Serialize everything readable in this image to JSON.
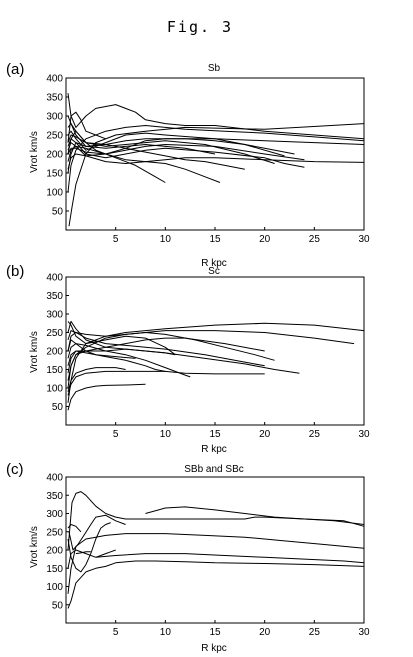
{
  "figure_title": "Fig. 3",
  "chart_data": [
    {
      "type": "line",
      "panel_label": "(a)",
      "title": "Sb",
      "xlabel": "R kpc",
      "ylabel": "Vrot km/s",
      "xlim": [
        0,
        30
      ],
      "ylim": [
        0,
        400
      ],
      "xticks": [
        5,
        10,
        15,
        20,
        25,
        30
      ],
      "yticks": [
        50,
        100,
        150,
        200,
        250,
        300,
        350,
        400
      ],
      "grid": false,
      "series": [
        {
          "x": [
            0.3,
            0.6,
            1,
            2,
            3,
            5,
            8,
            12,
            20,
            30
          ],
          "y": [
            10,
            60,
            120,
            200,
            230,
            250,
            260,
            270,
            265,
            280
          ]
        },
        {
          "x": [
            0.2,
            0.5,
            1,
            2,
            3,
            5,
            7,
            8,
            10,
            12,
            15,
            20,
            25,
            30
          ],
          "y": [
            360,
            300,
            270,
            300,
            320,
            330,
            310,
            290,
            280,
            275,
            275,
            260,
            250,
            240
          ]
        },
        {
          "x": [
            0.2,
            0.5,
            1,
            2,
            4,
            6,
            8,
            10,
            12,
            16,
            20,
            25,
            30
          ],
          "y": [
            100,
            170,
            210,
            240,
            260,
            270,
            275,
            270,
            265,
            260,
            255,
            245,
            235
          ]
        },
        {
          "x": [
            0.2,
            0.5,
            1,
            2,
            4,
            6,
            8,
            10,
            15,
            20,
            25,
            30
          ],
          "y": [
            150,
            200,
            230,
            220,
            225,
            235,
            240,
            240,
            240,
            235,
            230,
            225
          ]
        },
        {
          "x": [
            0.2,
            0.5,
            1,
            2,
            3,
            5,
            7,
            9,
            10
          ],
          "y": [
            200,
            240,
            260,
            230,
            210,
            190,
            170,
            140,
            125
          ]
        },
        {
          "x": [
            0.2,
            0.5,
            1,
            2,
            4,
            6,
            8,
            10,
            12,
            14,
            15.5
          ],
          "y": [
            180,
            210,
            220,
            215,
            200,
            185,
            180,
            175,
            160,
            140,
            125
          ]
        },
        {
          "x": [
            0.2,
            0.5,
            1,
            2,
            4,
            6,
            8,
            10,
            15,
            20,
            22,
            24
          ],
          "y": [
            220,
            240,
            230,
            200,
            190,
            200,
            210,
            215,
            205,
            190,
            175,
            165
          ]
        },
        {
          "x": [
            0.2,
            0.5,
            1,
            2,
            4,
            6,
            8,
            10,
            15,
            20,
            23
          ],
          "y": [
            250,
            260,
            240,
            210,
            230,
            250,
            255,
            250,
            240,
            215,
            200
          ]
        },
        {
          "x": [
            0.2,
            0.5,
            1,
            2,
            4,
            6,
            8,
            10,
            15,
            20,
            24
          ],
          "y": [
            160,
            190,
            200,
            195,
            200,
            210,
            220,
            225,
            220,
            200,
            185
          ]
        },
        {
          "x": [
            0.2,
            0.5,
            1,
            2,
            4,
            6,
            8,
            10,
            14,
            18,
            21
          ],
          "y": [
            270,
            280,
            260,
            230,
            220,
            225,
            230,
            235,
            225,
            200,
            175
          ]
        },
        {
          "x": [
            0.2,
            0.5,
            1,
            2,
            4,
            6,
            8,
            10,
            12,
            15,
            20,
            25,
            30
          ],
          "y": [
            210,
            230,
            220,
            195,
            180,
            175,
            180,
            185,
            190,
            190,
            185,
            180,
            178
          ]
        },
        {
          "x": [
            0.2,
            0.5,
            1,
            2,
            4,
            6,
            8,
            10,
            12,
            15
          ],
          "y": [
            300,
            280,
            250,
            220,
            215,
            220,
            225,
            220,
            215,
            200
          ]
        },
        {
          "x": [
            0.2,
            0.5,
            1,
            2,
            4,
            6,
            8,
            10,
            12,
            14,
            16,
            18
          ],
          "y": [
            230,
            250,
            245,
            230,
            225,
            215,
            205,
            195,
            185,
            180,
            170,
            160
          ]
        },
        {
          "x": [
            0.2,
            0.5,
            1,
            2,
            4,
            6,
            8,
            10,
            12,
            15,
            18,
            22
          ],
          "y": [
            200,
            215,
            215,
            205,
            200,
            215,
            235,
            240,
            240,
            235,
            225,
            195
          ]
        },
        {
          "x": [
            0.2,
            0.5,
            1,
            1.5,
            2,
            3,
            4
          ],
          "y": [
            230,
            300,
            310,
            290,
            260,
            250,
            240
          ]
        }
      ]
    },
    {
      "type": "line",
      "panel_label": "(b)",
      "title": "Sc",
      "xlabel": "R kpc",
      "ylabel": "Vrot km/s",
      "xlim": [
        0,
        30
      ],
      "ylim": [
        0,
        400
      ],
      "xticks": [
        5,
        10,
        15,
        20,
        25,
        30
      ],
      "yticks": [
        50,
        100,
        150,
        200,
        250,
        300,
        350,
        400
      ],
      "grid": false,
      "series": [
        {
          "x": [
            0.2,
            0.5,
            1,
            2,
            4,
            6,
            10,
            15,
            20,
            25,
            30
          ],
          "y": [
            60,
            120,
            180,
            220,
            240,
            250,
            260,
            270,
            275,
            270,
            255
          ]
        },
        {
          "x": [
            0.2,
            0.5,
            1,
            2,
            4,
            6,
            8,
            10,
            15,
            20,
            25,
            29
          ],
          "y": [
            100,
            160,
            190,
            210,
            235,
            245,
            250,
            255,
            255,
            250,
            235,
            220
          ]
        },
        {
          "x": [
            0.2,
            0.5,
            1,
            2,
            4,
            6,
            8,
            10,
            13,
            16,
            19,
            21
          ],
          "y": [
            200,
            240,
            250,
            245,
            240,
            245,
            250,
            245,
            230,
            210,
            190,
            175
          ]
        },
        {
          "x": [
            0.2,
            0.5,
            1,
            2,
            4,
            6,
            8,
            10,
            14,
            18,
            21,
            23.5
          ],
          "y": [
            140,
            180,
            200,
            200,
            200,
            205,
            200,
            195,
            180,
            165,
            150,
            140
          ]
        },
        {
          "x": [
            0.2,
            0.5,
            1,
            2,
            4,
            6,
            8,
            10,
            12,
            15,
            18,
            20
          ],
          "y": [
            80,
            110,
            130,
            140,
            145,
            145,
            145,
            145,
            140,
            138,
            138,
            138
          ]
        },
        {
          "x": [
            0.2,
            0.5,
            1,
            2,
            3,
            4,
            6,
            8
          ],
          "y": [
            40,
            70,
            90,
            100,
            105,
            107,
            108,
            110
          ]
        },
        {
          "x": [
            0.2,
            0.5,
            1,
            2,
            4,
            6,
            8,
            10,
            11
          ],
          "y": [
            250,
            280,
            260,
            230,
            210,
            205,
            200,
            195,
            190
          ]
        },
        {
          "x": [
            0.2,
            0.5,
            1,
            2,
            4,
            6,
            8,
            10,
            12,
            12.5
          ],
          "y": [
            180,
            210,
            220,
            215,
            200,
            190,
            175,
            155,
            135,
            130
          ]
        },
        {
          "x": [
            0.2,
            0.5,
            1,
            2,
            4,
            6,
            8,
            9,
            10
          ],
          "y": [
            160,
            190,
            200,
            195,
            185,
            175,
            160,
            150,
            145
          ]
        },
        {
          "x": [
            0.2,
            0.5,
            1,
            2,
            3,
            4,
            5,
            6
          ],
          "y": [
            90,
            120,
            140,
            150,
            155,
            155,
            155,
            150
          ]
        },
        {
          "x": [
            0.2,
            0.5,
            1,
            2,
            4,
            6,
            8,
            10,
            14,
            18,
            20
          ],
          "y": [
            230,
            255,
            250,
            235,
            220,
            215,
            210,
            205,
            190,
            170,
            160
          ]
        },
        {
          "x": [
            0.2,
            0.5,
            1,
            2,
            4,
            6,
            8,
            10,
            12,
            16,
            20
          ],
          "y": [
            120,
            160,
            190,
            200,
            210,
            220,
            230,
            235,
            235,
            220,
            200
          ]
        },
        {
          "x": [
            0.2,
            0.5,
            1,
            2,
            4,
            6,
            8,
            10,
            11
          ],
          "y": [
            280,
            270,
            240,
            220,
            230,
            240,
            235,
            210,
            190
          ]
        },
        {
          "x": [
            0.2,
            0.5,
            1,
            2,
            3,
            5,
            7
          ],
          "y": [
            200,
            230,
            220,
            200,
            190,
            185,
            180
          ]
        }
      ]
    },
    {
      "type": "line",
      "panel_label": "(c)",
      "title": "SBb and SBc",
      "xlabel": "R kpc",
      "ylabel": "Vrot km/s",
      "xlim": [
        0,
        30
      ],
      "ylim": [
        0,
        400
      ],
      "xticks": [
        5,
        10,
        15,
        20,
        25,
        30
      ],
      "yticks": [
        50,
        100,
        150,
        200,
        250,
        300,
        350,
        400
      ],
      "grid": false,
      "series": [
        {
          "x": [
            0.2,
            0.6,
            1,
            1.5,
            2,
            3,
            4,
            5,
            6,
            8,
            10,
            14,
            18,
            19,
            20,
            24,
            28,
            30
          ],
          "y": [
            200,
            330,
            355,
            360,
            350,
            320,
            300,
            290,
            285,
            285,
            285,
            285,
            285,
            290,
            290,
            285,
            280,
            265
          ]
        },
        {
          "x": [
            0.2,
            0.5,
            1,
            2,
            3,
            4,
            6,
            8,
            10,
            14,
            18,
            22,
            26,
            30
          ],
          "y": [
            80,
            150,
            210,
            230,
            235,
            240,
            245,
            245,
            245,
            240,
            235,
            225,
            215,
            205
          ]
        },
        {
          "x": [
            0.2,
            0.5,
            1,
            2,
            3,
            4,
            5,
            7,
            9,
            12,
            15,
            20,
            25,
            30
          ],
          "y": [
            40,
            60,
            110,
            140,
            150,
            155,
            165,
            170,
            170,
            168,
            165,
            163,
            160,
            155
          ]
        },
        {
          "x": [
            0.2,
            0.5,
            1,
            2,
            3,
            5,
            8,
            12,
            16,
            20,
            24,
            28,
            30
          ],
          "y": [
            150,
            190,
            200,
            190,
            180,
            185,
            190,
            190,
            185,
            180,
            175,
            170,
            165
          ]
        },
        {
          "x": [
            0.3,
            0.7,
            1.2,
            1.8,
            2.5,
            3,
            4,
            5,
            6
          ],
          "y": [
            250,
            200,
            215,
            240,
            270,
            290,
            295,
            280,
            270
          ]
        },
        {
          "x": [
            8,
            10,
            12,
            15,
            18,
            21,
            24,
            27,
            30
          ],
          "y": [
            300,
            315,
            318,
            310,
            300,
            290,
            285,
            280,
            270
          ]
        },
        {
          "x": [
            0.2,
            0.5,
            1,
            1.5,
            2,
            2.5,
            3,
            3.5,
            4,
            4.5
          ],
          "y": [
            230,
            180,
            150,
            140,
            160,
            190,
            230,
            260,
            270,
            275
          ]
        },
        {
          "x": [
            3,
            3.5,
            4,
            4.5,
            5
          ],
          "y": [
            180,
            185,
            190,
            195,
            200
          ]
        },
        {
          "x": [
            1,
            1.5,
            2,
            2.5
          ],
          "y": [
            190,
            192,
            195,
            195
          ]
        },
        {
          "x": [
            0.2,
            0.5,
            1,
            1.5
          ],
          "y": [
            260,
            270,
            265,
            250
          ]
        }
      ]
    }
  ]
}
